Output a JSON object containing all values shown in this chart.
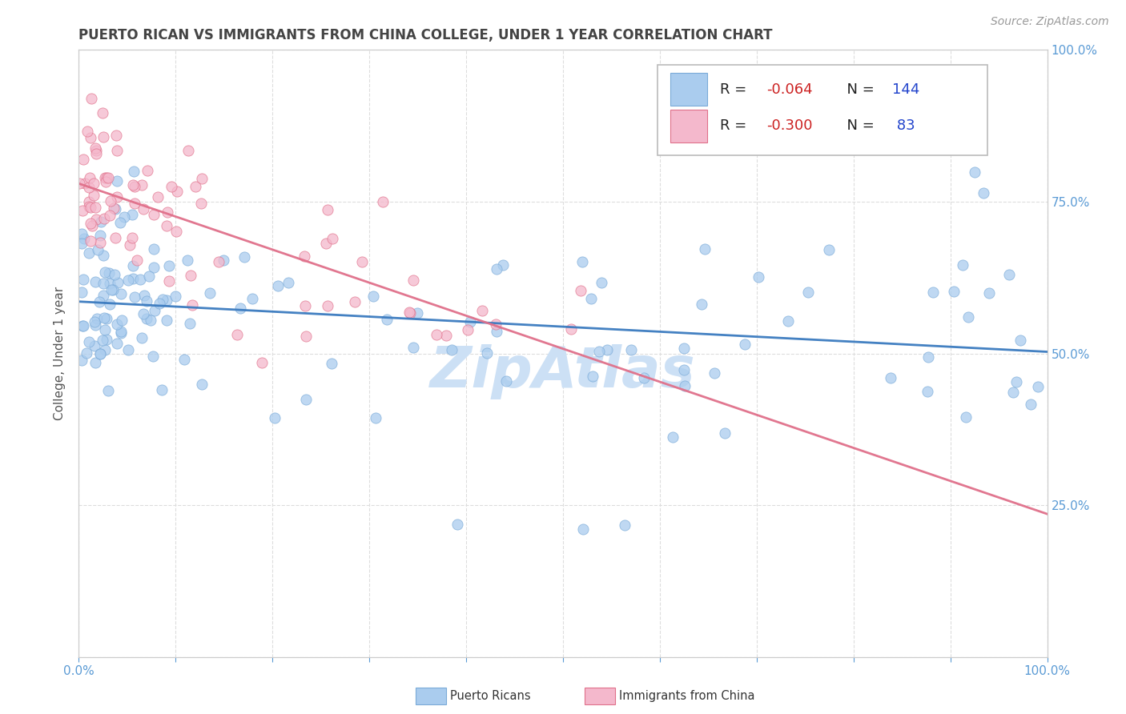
{
  "title": "PUERTO RICAN VS IMMIGRANTS FROM CHINA COLLEGE, UNDER 1 YEAR CORRELATION CHART",
  "source": "Source: ZipAtlas.com",
  "ylabel": "College, Under 1 year",
  "right_yticks": [
    0.25,
    0.5,
    0.75,
    1.0
  ],
  "right_yticklabels": [
    "25.0%",
    "50.0%",
    "75.0%",
    "100.0%"
  ],
  "watermark": "ZipAtlas",
  "series": [
    {
      "name": "Puerto Ricans",
      "R": -0.064,
      "N": 144,
      "color": "#aaccee",
      "edge_color": "#7aaad8",
      "line_color": "#3a7abf"
    },
    {
      "name": "Immigrants from China",
      "R": -0.3,
      "N": 83,
      "color": "#f4b8cc",
      "edge_color": "#e0708a",
      "line_color": "#e0708a"
    }
  ],
  "xlim": [
    0.0,
    1.0
  ],
  "ylim": [
    0.0,
    1.0
  ],
  "title_color": "#444444",
  "title_fontsize": 12,
  "axis_label_color": "#5b9bd5",
  "watermark_color": "#cce0f5",
  "watermark_fontsize": 52,
  "source_color": "#999999",
  "source_fontsize": 10,
  "legend_R_color_blue": "#e05050",
  "legend_R_color_pink": "#e05050",
  "legend_N_color": "#3060c0"
}
